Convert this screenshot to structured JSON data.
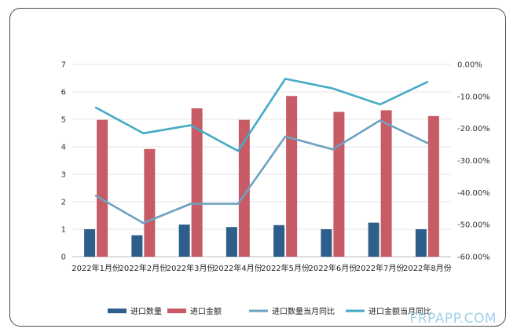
{
  "chart_data": {
    "type": "bar",
    "categories": [
      "2022年1月份",
      "2022年2月份",
      "2022年3月份",
      "2022年4月份",
      "2022年5月份",
      "2022年6月份",
      "2022年7月份",
      "2022年8月份"
    ],
    "series": [
      {
        "name": "进口数量",
        "type": "bar",
        "axis": "left",
        "color": "#2e5f8a",
        "values": [
          1.0,
          0.78,
          1.17,
          1.08,
          1.15,
          1.0,
          1.24,
          1.0
        ]
      },
      {
        "name": "进口金额",
        "type": "bar",
        "axis": "left",
        "color": "#c75b66",
        "values": [
          4.98,
          3.92,
          5.4,
          4.98,
          5.85,
          5.27,
          5.33,
          5.12
        ]
      },
      {
        "name": "进口数量当月同比",
        "type": "line",
        "axis": "right",
        "color": "#6ea2c0",
        "values": [
          -41.0,
          -49.5,
          -43.5,
          -43.5,
          -22.5,
          -26.5,
          -17.5,
          -24.5
        ]
      },
      {
        "name": "进口金额当月同比",
        "type": "line",
        "axis": "right",
        "color": "#45abc4",
        "values": [
          -13.5,
          -21.5,
          -19.0,
          -27.0,
          -4.5,
          -7.5,
          -12.5,
          -5.5
        ]
      }
    ],
    "ylim_left": [
      0,
      7
    ],
    "yticks_left": [
      "0",
      "1",
      "2",
      "3",
      "4",
      "5",
      "6",
      "7"
    ],
    "ylim_right": [
      -60,
      0
    ],
    "yticks_right": [
      "-60.00%",
      "-50.00%",
      "-40.00%",
      "-30.00%",
      "-20.00%",
      "-10.00%",
      "0.00%"
    ],
    "grid": true,
    "legend_position": "bottom"
  },
  "watermark": "FRPAPP.COM"
}
